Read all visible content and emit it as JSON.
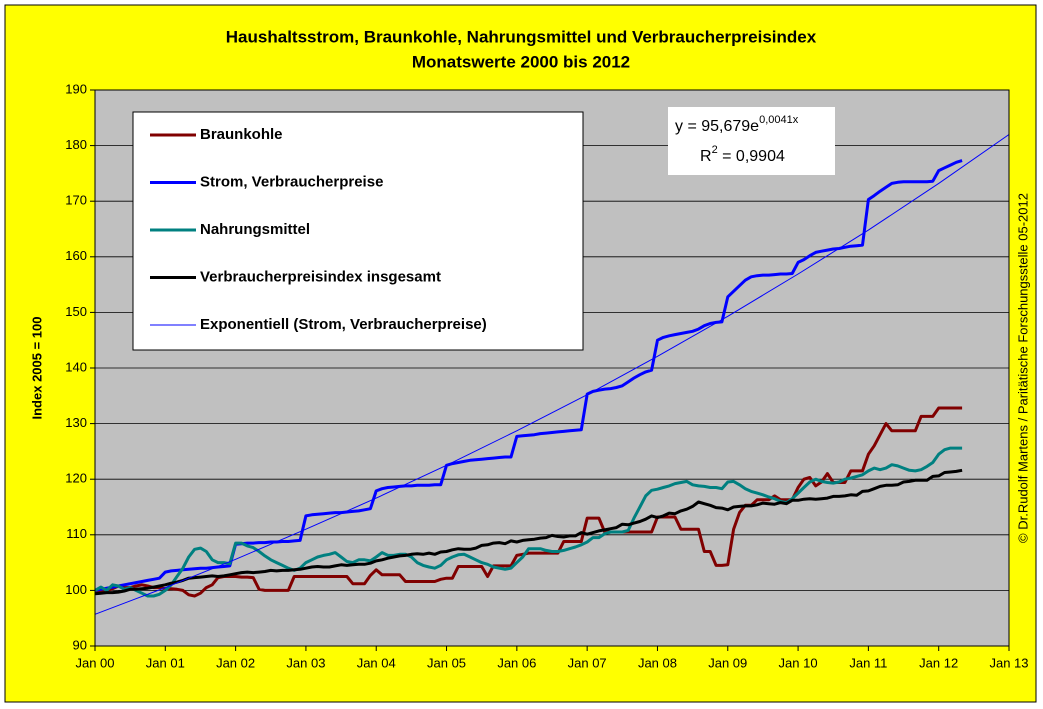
{
  "chart_data": {
    "type": "line",
    "title": [
      "Haushaltsstrom, Braunkohle, Nahrungsmittel und Verbraucherpreisindex",
      "Monatswerte 2000 bis 2012"
    ],
    "y_label": "Index 2005 = 100",
    "source": "© Dr.Rudolf Martens / Paritätische Forschungsstelle 05-2012",
    "equation": {
      "base": "y = 95,679e",
      "exponent": "0,0041x"
    },
    "r_squared": {
      "base": "R",
      "exponent": "2",
      "rest": " = 0,9904"
    },
    "grid": true,
    "legend": "upper left",
    "xlim": [
      0,
      156
    ],
    "xticks": [
      {
        "value": 0,
        "label": "Jan 00"
      },
      {
        "value": 12,
        "label": "Jan 01"
      },
      {
        "value": 24,
        "label": "Jan 02"
      },
      {
        "value": 36,
        "label": "Jan 03"
      },
      {
        "value": 48,
        "label": "Jan 04"
      },
      {
        "value": 60,
        "label": "Jan 05"
      },
      {
        "value": 72,
        "label": "Jan 06"
      },
      {
        "value": 84,
        "label": "Jan 07"
      },
      {
        "value": 96,
        "label": "Jan 08"
      },
      {
        "value": 108,
        "label": "Jan 09"
      },
      {
        "value": 120,
        "label": "Jan 10"
      },
      {
        "value": 132,
        "label": "Jan 11"
      },
      {
        "value": 144,
        "label": "Jan 12"
      },
      {
        "value": 156,
        "label": "Jan 13"
      }
    ],
    "ylim": [
      90,
      190
    ],
    "yticks": [
      90,
      100,
      110,
      120,
      130,
      140,
      150,
      160,
      170,
      180,
      190
    ],
    "x": [
      0,
      1,
      2,
      3,
      4,
      5,
      6,
      7,
      8,
      9,
      10,
      11,
      12,
      13,
      14,
      15,
      16,
      17,
      18,
      19,
      20,
      21,
      22,
      23,
      24,
      25,
      26,
      27,
      28,
      29,
      30,
      31,
      32,
      33,
      34,
      35,
      36,
      37,
      38,
      39,
      40,
      41,
      42,
      43,
      44,
      45,
      46,
      47,
      48,
      49,
      50,
      51,
      52,
      53,
      54,
      55,
      56,
      57,
      58,
      59,
      60,
      61,
      62,
      63,
      64,
      65,
      66,
      67,
      68,
      69,
      70,
      71,
      72,
      73,
      74,
      75,
      76,
      77,
      78,
      79,
      80,
      81,
      82,
      83,
      84,
      85,
      86,
      87,
      88,
      89,
      90,
      91,
      92,
      93,
      94,
      95,
      96,
      97,
      98,
      99,
      100,
      101,
      102,
      103,
      104,
      105,
      106,
      107,
      108,
      109,
      110,
      111,
      112,
      113,
      114,
      115,
      116,
      117,
      118,
      119,
      120,
      121,
      122,
      123,
      124,
      125,
      126,
      127,
      128,
      129,
      130,
      131,
      132,
      133,
      134,
      135,
      136,
      137,
      138,
      139,
      140,
      141,
      142,
      143,
      144,
      145,
      146,
      147,
      148
    ],
    "series": [
      {
        "name": "Braunkohle",
        "color": "#800000",
        "values": [
          99.5,
          99.8,
          100,
          100.3,
          100.8,
          100.5,
          100.5,
          100.8,
          101,
          100.8,
          100.5,
          100.5,
          100.3,
          100.3,
          100.2,
          100,
          99.2,
          99,
          99.5,
          100.5,
          101,
          102.3,
          102.5,
          102.5,
          102.5,
          102.4,
          102.4,
          102.3,
          100.2,
          100,
          100,
          100,
          100,
          100,
          102.5,
          102.5,
          102.5,
          102.5,
          102.5,
          102.5,
          102.5,
          102.5,
          102.5,
          102.5,
          101.2,
          101.2,
          101.2,
          102.7,
          103.7,
          102.8,
          102.8,
          102.8,
          102.8,
          101.6,
          101.6,
          101.6,
          101.6,
          101.6,
          101.6,
          102,
          102.2,
          102.2,
          104.3,
          104.3,
          104.3,
          104.3,
          104.3,
          102.5,
          104.4,
          104.4,
          104.4,
          104.4,
          106.3,
          106.5,
          106.7,
          106.7,
          106.7,
          106.7,
          106.7,
          106.7,
          108.8,
          108.8,
          108.8,
          108.8,
          113,
          113,
          113,
          110.5,
          110.5,
          110.5,
          110.5,
          110.5,
          110.5,
          110.5,
          110.5,
          110.5,
          113.2,
          113.2,
          113.2,
          113.2,
          111,
          111,
          111,
          111,
          107,
          107,
          104.5,
          104.5,
          104.6,
          111,
          114,
          115.3,
          115.3,
          116.3,
          116.3,
          116.3,
          117,
          116.3,
          116.3,
          116.3,
          118.5,
          120,
          120.3,
          118.8,
          119.5,
          121,
          119.4,
          119.4,
          119.4,
          121.5,
          121.5,
          121.5,
          124.5,
          126,
          128,
          130,
          128.7,
          128.7,
          128.7,
          128.7,
          128.7,
          131.3,
          131.3,
          131.3,
          132.8,
          132.8,
          132.8,
          132.8,
          132.8
        ]
      },
      {
        "name": "Strom, Verbraucherpreise",
        "color": "#0000ff",
        "values": [
          100,
          100.2,
          100.4,
          100.6,
          100.8,
          101,
          101.2,
          101.4,
          101.6,
          101.8,
          102,
          102.2,
          103.3,
          103.5,
          103.6,
          103.7,
          103.8,
          103.9,
          104,
          104,
          104.1,
          104.2,
          104.3,
          104.4,
          108.3,
          108.4,
          108.5,
          108.5,
          108.6,
          108.6,
          108.7,
          108.7,
          108.8,
          108.8,
          108.9,
          109,
          113.4,
          113.6,
          113.7,
          113.8,
          113.9,
          114,
          114,
          114.1,
          114.2,
          114.3,
          114.5,
          114.7,
          117.9,
          118.3,
          118.5,
          118.6,
          118.7,
          118.8,
          118.8,
          118.9,
          118.9,
          118.9,
          119,
          119,
          122.5,
          122.8,
          123,
          123.2,
          123.4,
          123.5,
          123.6,
          123.7,
          123.8,
          123.9,
          124,
          124,
          127.7,
          127.8,
          127.9,
          128,
          128.2,
          128.3,
          128.4,
          128.5,
          128.6,
          128.7,
          128.8,
          128.9,
          135.3,
          135.8,
          136,
          136.2,
          136.3,
          136.5,
          136.8,
          137.5,
          138.2,
          138.8,
          139.3,
          139.6,
          145,
          145.5,
          145.8,
          146,
          146.2,
          146.4,
          146.6,
          147,
          147.6,
          148,
          148.2,
          148.3,
          152.8,
          153.8,
          154.8,
          155.8,
          156.4,
          156.6,
          156.7,
          156.7,
          156.8,
          156.9,
          156.9,
          157,
          159,
          159.5,
          160.2,
          160.8,
          161,
          161.2,
          161.4,
          161.5,
          161.7,
          161.9,
          162,
          162.1,
          170.3,
          171,
          171.8,
          172.5,
          173.2,
          173.4,
          173.5,
          173.5,
          173.5,
          173.5,
          173.5,
          173.6,
          175.5,
          176,
          176.5,
          177,
          177.3
        ]
      },
      {
        "name": "Nahrungsmittel",
        "color": "#008080",
        "values": [
          100,
          100.6,
          100,
          101,
          100.8,
          100.2,
          100.5,
          100,
          99.5,
          99,
          99,
          99.3,
          100,
          101,
          102.5,
          104,
          106,
          107.4,
          107.6,
          107,
          105.5,
          105,
          105,
          104.8,
          108.5,
          108.5,
          108,
          107.7,
          107,
          106.2,
          105.5,
          105,
          104.5,
          104,
          103.6,
          104,
          105,
          105.5,
          106,
          106.3,
          106.5,
          106.8,
          106,
          105.2,
          105,
          105.5,
          105.5,
          105.3,
          106,
          106.8,
          106.3,
          106.3,
          106.5,
          106.5,
          106,
          105,
          104.5,
          104.2,
          104,
          104.5,
          105.5,
          106,
          106.4,
          106.5,
          106,
          105.5,
          105,
          104.7,
          104.2,
          104,
          103.8,
          104,
          105,
          106,
          107.5,
          107.5,
          107.5,
          107.2,
          107,
          107,
          107.2,
          107.5,
          107.8,
          108.2,
          108.7,
          109.5,
          109.5,
          110.2,
          110.5,
          110.5,
          110.5,
          110.8,
          113,
          115,
          117,
          118,
          118.2,
          118.5,
          118.8,
          119.2,
          119.4,
          119.6,
          119,
          118.8,
          118.7,
          118.5,
          118.5,
          118.3,
          119.5,
          119.6,
          119,
          118.3,
          117.8,
          117.5,
          117.2,
          116.8,
          116.5,
          116,
          115.8,
          116.5,
          117.5,
          118.5,
          119.5,
          120,
          119.6,
          119.4,
          119.3,
          119.5,
          120,
          120.2,
          120.5,
          120.8,
          121.5,
          122,
          121.7,
          122,
          122.6,
          122.4,
          122,
          121.6,
          121.5,
          121.7,
          122.3,
          123,
          124.5,
          125.3,
          125.6,
          125.6,
          125.6
        ]
      },
      {
        "name": "Verbraucherpreisindex insgesamt",
        "color": "#000000",
        "values": [
          99.4,
          99.5,
          99.6,
          99.6,
          99.7,
          99.9,
          100.2,
          100.2,
          100.3,
          100.4,
          100.6,
          100.8,
          101,
          101.3,
          101.5,
          101.8,
          102.2,
          102.3,
          102.4,
          102.5,
          102.6,
          102.5,
          102.6,
          102.8,
          103,
          103.2,
          103.3,
          103.2,
          103.3,
          103.4,
          103.6,
          103.5,
          103.6,
          103.6,
          103.7,
          103.8,
          104,
          104.2,
          104.3,
          104.2,
          104.2,
          104.4,
          104.6,
          104.5,
          104.6,
          104.7,
          104.7,
          104.9,
          105.3,
          105.5,
          105.8,
          106,
          106.2,
          106.3,
          106.5,
          106.6,
          106.5,
          106.7,
          106.5,
          106.9,
          107,
          107.3,
          107.5,
          107.4,
          107.4,
          107.6,
          108.1,
          108.2,
          108.5,
          108.6,
          108.4,
          108.9,
          108.7,
          109,
          109.1,
          109.2,
          109.4,
          109.5,
          109.9,
          109.7,
          109.6,
          109.8,
          109.8,
          110.4,
          110.1,
          110.4,
          110.7,
          110.9,
          111.1,
          111.3,
          111.9,
          111.8,
          112.1,
          112.4,
          112.8,
          113.4,
          113.1,
          113.4,
          113.9,
          113.8,
          114.3,
          114.6,
          115.1,
          115.9,
          115.6,
          115.3,
          114.9,
          114.8,
          114.5,
          115,
          115.1,
          115.2,
          115.2,
          115.4,
          115.7,
          115.6,
          115.5,
          115.8,
          115.6,
          116.2,
          116.2,
          116.4,
          116.5,
          116.4,
          116.5,
          116.6,
          116.9,
          116.9,
          117,
          117.2,
          117.1,
          117.8,
          117.9,
          118.3,
          118.7,
          118.9,
          118.9,
          119,
          119.5,
          119.6,
          119.8,
          119.8,
          119.8,
          120.5,
          120.6,
          121.2,
          121.3,
          121.4,
          121.6
        ]
      },
      {
        "name": "Exponentiell (Strom, Verbraucherpreise)",
        "color": "#0000ff",
        "trendline": true,
        "x": [
          0,
          12,
          24,
          36,
          48,
          60,
          72,
          84,
          96,
          108,
          120,
          132,
          144,
          156
        ],
        "values": [
          95.7,
          100.5,
          105.6,
          111.0,
          116.6,
          122.5,
          128.7,
          135.2,
          142.1,
          149.3,
          156.9,
          164.8,
          173.2,
          182.0
        ]
      }
    ]
  }
}
